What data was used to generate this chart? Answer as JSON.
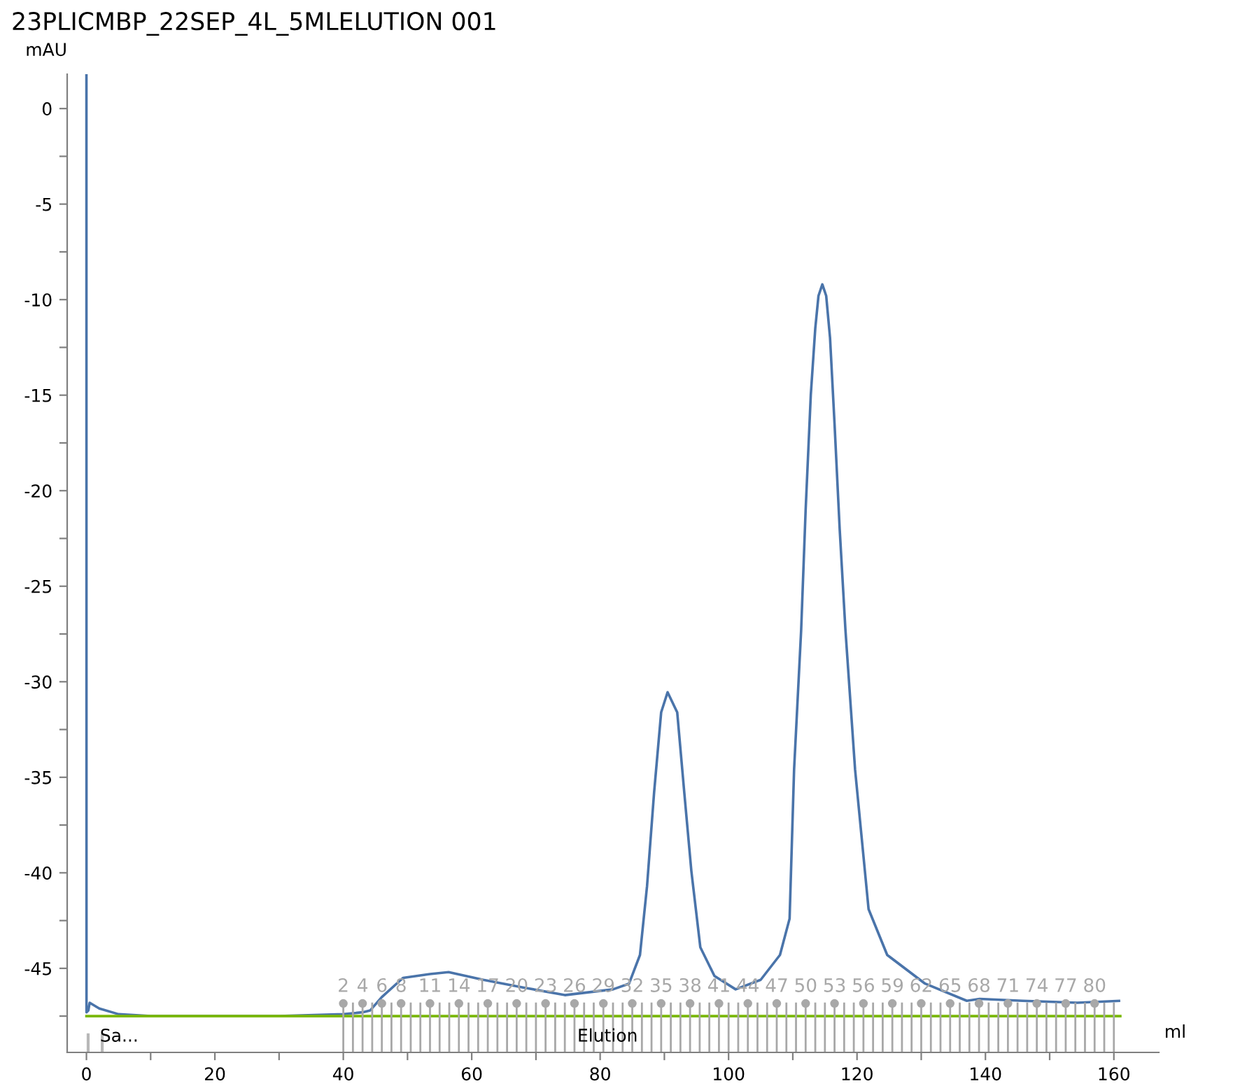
{
  "chart_data": {
    "type": "line",
    "title": "23PLICMBP_22SEP_4L_5MLELUTION 001",
    "xlabel": "ml",
    "ylabel": "mAU",
    "xlim": [
      -3,
      167
    ],
    "ylim": [
      -49.4,
      1.8
    ],
    "xticks": [
      0,
      {
        "value": 10,
        "label": null
      },
      20,
      {
        "value": 30,
        "label": null
      },
      40,
      {
        "value": 50,
        "label": null
      },
      60,
      {
        "value": 70,
        "label": null
      },
      80,
      {
        "value": 90,
        "label": null
      },
      100,
      {
        "value": 110,
        "label": null
      },
      120,
      {
        "value": 130,
        "label": null
      },
      140,
      {
        "value": 150,
        "label": null
      },
      160
    ],
    "yticks": [
      0,
      {
        "value": -2.5,
        "label": null
      },
      -5,
      {
        "value": -7.5,
        "label": null
      },
      -10,
      {
        "value": -12.5,
        "label": null
      },
      -15,
      {
        "value": -17.5,
        "label": null
      },
      -20,
      {
        "value": -22.5,
        "label": null
      },
      -25,
      {
        "value": -27.5,
        "label": null
      },
      -30,
      {
        "value": -32.5,
        "label": null
      },
      -35,
      {
        "value": -37.5,
        "label": null
      },
      -40,
      {
        "value": -42.5,
        "label": null
      },
      -45,
      {
        "value": -47.5,
        "label": null
      }
    ],
    "x2lim": [
      -26.667,
      86.667
    ],
    "x2ticks": [
      2,
      4,
      6,
      8,
      11,
      14,
      17,
      20,
      23,
      26,
      29,
      32,
      35,
      38,
      41,
      44,
      47,
      50,
      53,
      56,
      59,
      62,
      65,
      68,
      71,
      74,
      77,
      80
    ],
    "grid": false,
    "series": [
      {
        "color": "#4a74aa",
        "x": [
          0,
          0.01,
          0.3,
          0.5,
          2,
          5,
          10,
          20,
          30,
          40,
          43,
          44.2,
          46,
          49.3,
          53.5,
          56.4,
          61.8,
          68,
          74.5,
          82,
          84.5,
          86.2,
          87.3,
          88.4,
          89.5,
          90.5,
          92.0,
          93.1,
          94.2,
          95.6,
          97.8,
          101.1,
          105,
          108,
          109.5,
          110.2,
          111.3,
          112,
          112.8,
          113.5,
          114,
          114.6,
          115.2,
          115.8,
          116.5,
          117.3,
          118.2,
          119.7,
          121.8,
          124.7,
          130.6,
          137.1,
          139.1,
          145.8,
          154.3,
          160.8
        ],
        "values": [
          1.8,
          -47.3,
          -47.2,
          -46.8,
          -47.1,
          -47.4,
          -47.5,
          -47.5,
          -47.5,
          -47.4,
          -47.3,
          -47.2,
          -46.5,
          -45.5,
          -45.3,
          -45.2,
          -45.6,
          -46.0,
          -46.4,
          -46.1,
          -45.8,
          -44.3,
          -40.7,
          -35.8,
          -31.6,
          -30.55,
          -31.6,
          -35.8,
          -39.9,
          -43.9,
          -45.4,
          -46.1,
          -45.6,
          -44.3,
          -42.4,
          -34.6,
          -27.3,
          -21,
          -15,
          -11.5,
          -9.8,
          -9.2,
          -9.8,
          -12,
          -16.5,
          -22,
          -27.3,
          -34.6,
          -41.9,
          -44.3,
          -45.8,
          -46.7,
          -46.6,
          -46.7,
          -46.8,
          -46.7
        ]
      },
      {
        "color": "#7ab800",
        "x": [
          0,
          161
        ],
        "values": [
          -47.5,
          -47.5
        ]
      }
    ],
    "annotations": [
      "Sa...",
      "Elution"
    ]
  }
}
